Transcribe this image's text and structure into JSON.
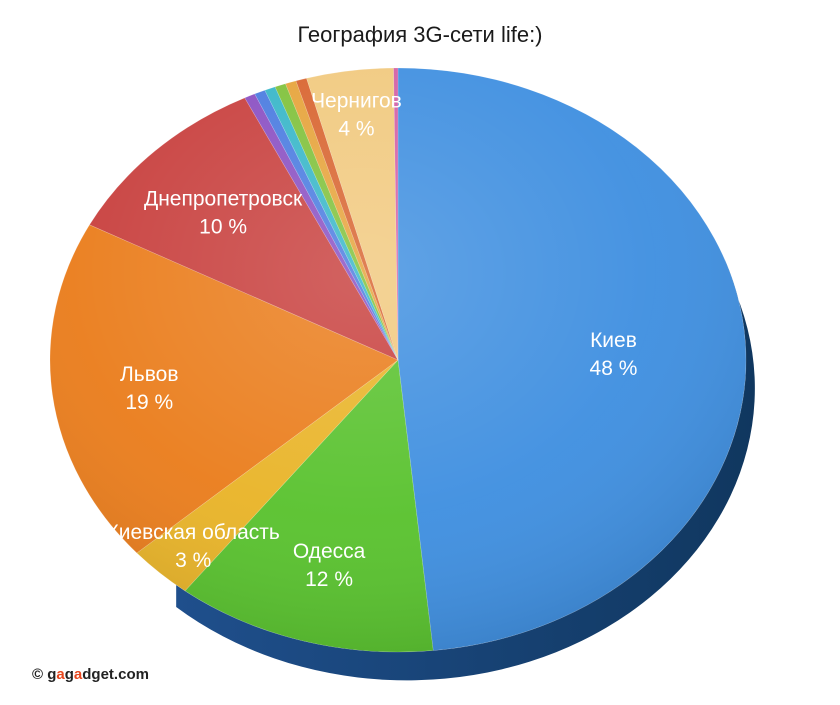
{
  "chart_data": {
    "type": "pie",
    "title": "География 3G-сети life:)",
    "slices": [
      {
        "name": "Киев",
        "label": "Киев",
        "value_label": "48 %",
        "value": 48.0,
        "color": "#3f8fe0"
      },
      {
        "name": "Одесса",
        "label": "Одесса",
        "value_label": "12 %",
        "value": 12.0,
        "color": "#59c22e"
      },
      {
        "name": "Киевская область",
        "label": "Киевская область",
        "value_label": "3 %",
        "value": 3.0,
        "color": "#e9b428"
      },
      {
        "name": "Львов",
        "label": "Львов",
        "value_label": "19 %",
        "value": 19.0,
        "color": "#ea7d1c"
      },
      {
        "name": "Днепропетровск",
        "label": "Днепропетровск",
        "value_label": "10 %",
        "value": 10.0,
        "color": "#c8403e"
      },
      {
        "name": "",
        "label": "",
        "value_label": "",
        "value": 0.5,
        "color": "#8a4fc2"
      },
      {
        "name": "",
        "label": "",
        "value_label": "",
        "value": 0.5,
        "color": "#4a7be0"
      },
      {
        "name": "",
        "label": "",
        "value_label": "",
        "value": 0.5,
        "color": "#37b6c8"
      },
      {
        "name": "",
        "label": "",
        "value_label": "",
        "value": 0.5,
        "color": "#7fc13a"
      },
      {
        "name": "",
        "label": "",
        "value_label": "",
        "value": 0.5,
        "color": "#e6a33a"
      },
      {
        "name": "",
        "label": "",
        "value_label": "",
        "value": 0.5,
        "color": "#d8642f"
      },
      {
        "name": "Чернигов",
        "label": "Чернигов",
        "value_label": "4 %",
        "value": 4.0,
        "color": "#f1c97e"
      },
      {
        "name": "",
        "label": "",
        "value_label": "",
        "value": 0.2,
        "color": "#d25fa6"
      }
    ]
  },
  "watermark": {
    "copyright": "©",
    "brand_part1": "g",
    "brand_accent1": "a",
    "brand_part2": "g",
    "brand_accent2": "a",
    "brand_part3": "dget.com"
  }
}
